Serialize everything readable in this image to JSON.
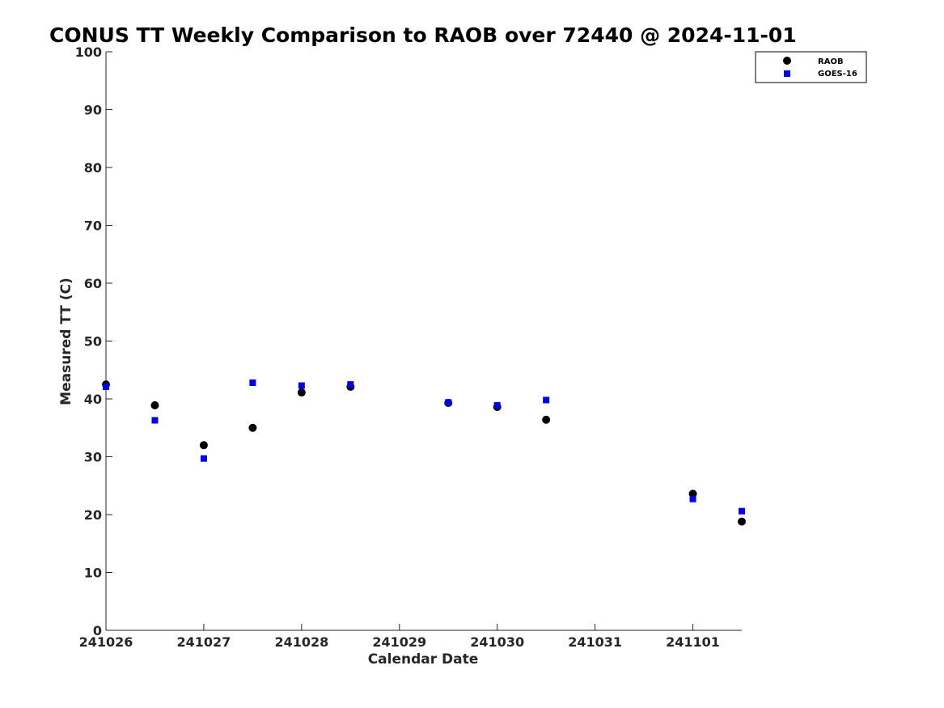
{
  "chart_data": {
    "type": "scatter",
    "title": "CONUS TT Weekly Comparison to RAOB over 72440 @ 2024-11-01",
    "xlabel": "Calendar Date",
    "ylabel": "Measured TT (C)",
    "x_tick_labels": [
      "241026",
      "241027",
      "241028",
      "241029",
      "241030",
      "241031",
      "241101"
    ],
    "y_ticks": [
      0,
      10,
      20,
      30,
      40,
      50,
      60,
      70,
      80,
      90,
      100
    ],
    "ylim": [
      0,
      100
    ],
    "grid": false,
    "legend_position": "top-right",
    "series": [
      {
        "name": "RAOB",
        "marker": "circle",
        "color": "#000000",
        "points": [
          {
            "x": "2024-10-26 00Z",
            "y": 42.5
          },
          {
            "x": "2024-10-26 12Z",
            "y": 38.9
          },
          {
            "x": "2024-10-27 00Z",
            "y": 32.0
          },
          {
            "x": "2024-10-27 12Z",
            "y": 35.0
          },
          {
            "x": "2024-10-28 00Z",
            "y": 41.1
          },
          {
            "x": "2024-10-28 12Z",
            "y": 42.1
          },
          {
            "x": "2024-10-29 12Z",
            "y": 39.3
          },
          {
            "x": "2024-10-30 00Z",
            "y": 38.6
          },
          {
            "x": "2024-10-30 12Z",
            "y": 36.4
          },
          {
            "x": "2024-11-01 00Z",
            "y": 23.6
          },
          {
            "x": "2024-11-01 12Z",
            "y": 18.8
          }
        ]
      },
      {
        "name": "GOES-16",
        "marker": "square",
        "color": "#0000e6",
        "points": [
          {
            "x": "2024-10-26 00Z",
            "y": 42.1
          },
          {
            "x": "2024-10-26 12Z",
            "y": 36.3
          },
          {
            "x": "2024-10-27 00Z",
            "y": 29.7
          },
          {
            "x": "2024-10-27 12Z",
            "y": 42.8
          },
          {
            "x": "2024-10-28 00Z",
            "y": 42.3
          },
          {
            "x": "2024-10-28 12Z",
            "y": 42.5
          },
          {
            "x": "2024-10-29 12Z",
            "y": 39.4
          },
          {
            "x": "2024-10-30 00Z",
            "y": 38.9
          },
          {
            "x": "2024-10-30 12Z",
            "y": 39.8
          },
          {
            "x": "2024-11-01 00Z",
            "y": 22.7
          },
          {
            "x": "2024-11-01 12Z",
            "y": 20.6
          }
        ]
      }
    ]
  }
}
